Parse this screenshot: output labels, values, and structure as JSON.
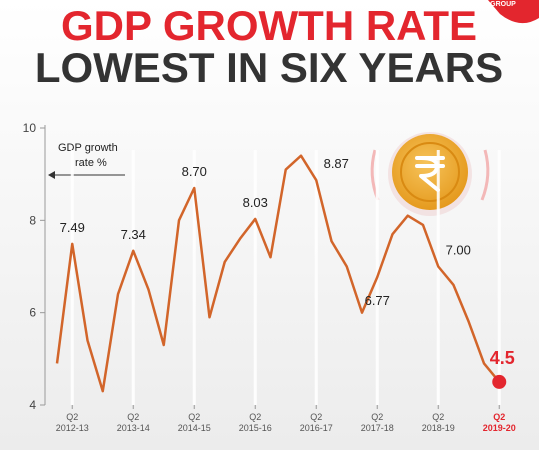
{
  "logo": "GROUP",
  "chart_data": {
    "type": "line",
    "title_lines": [
      "GDP GROWTH RATE",
      "LOWEST IN SIX YEARS"
    ],
    "annotation_lines": [
      "GDP growth",
      "rate %"
    ],
    "categories": [
      null,
      "Q2 2012-13",
      null,
      null,
      null,
      "Q2 2013-14",
      null,
      null,
      null,
      "Q2 2014-15",
      null,
      null,
      null,
      "Q2 2015-16",
      null,
      null,
      null,
      "Q2 2016-17",
      null,
      null,
      null,
      "Q2 2017-18",
      null,
      null,
      null,
      "Q2 2018-19",
      null,
      null,
      null,
      "Q2 2019-20"
    ],
    "series": [
      {
        "name": "GDP growth rate %",
        "color": "#d2652a",
        "values": [
          4.9,
          7.49,
          5.4,
          4.3,
          6.4,
          7.34,
          6.5,
          5.3,
          8.0,
          8.7,
          5.9,
          7.1,
          7.6,
          8.03,
          7.2,
          9.1,
          9.4,
          8.87,
          7.55,
          7.0,
          6.0,
          6.77,
          7.7,
          8.1,
          7.9,
          7.0,
          6.6,
          5.8,
          4.9,
          4.5
        ],
        "value_labels": [
          null,
          "7.49",
          null,
          null,
          null,
          "7.34",
          null,
          null,
          null,
          "8.70",
          null,
          null,
          null,
          "8.03",
          null,
          null,
          null,
          "8.87",
          null,
          null,
          null,
          "6.77",
          null,
          null,
          null,
          "7.00",
          null,
          null,
          null,
          "4.5"
        ]
      }
    ],
    "ylim": [
      4,
      10
    ],
    "yticks": [
      4,
      6,
      8,
      10
    ],
    "highlight_color": "#e3262e"
  }
}
